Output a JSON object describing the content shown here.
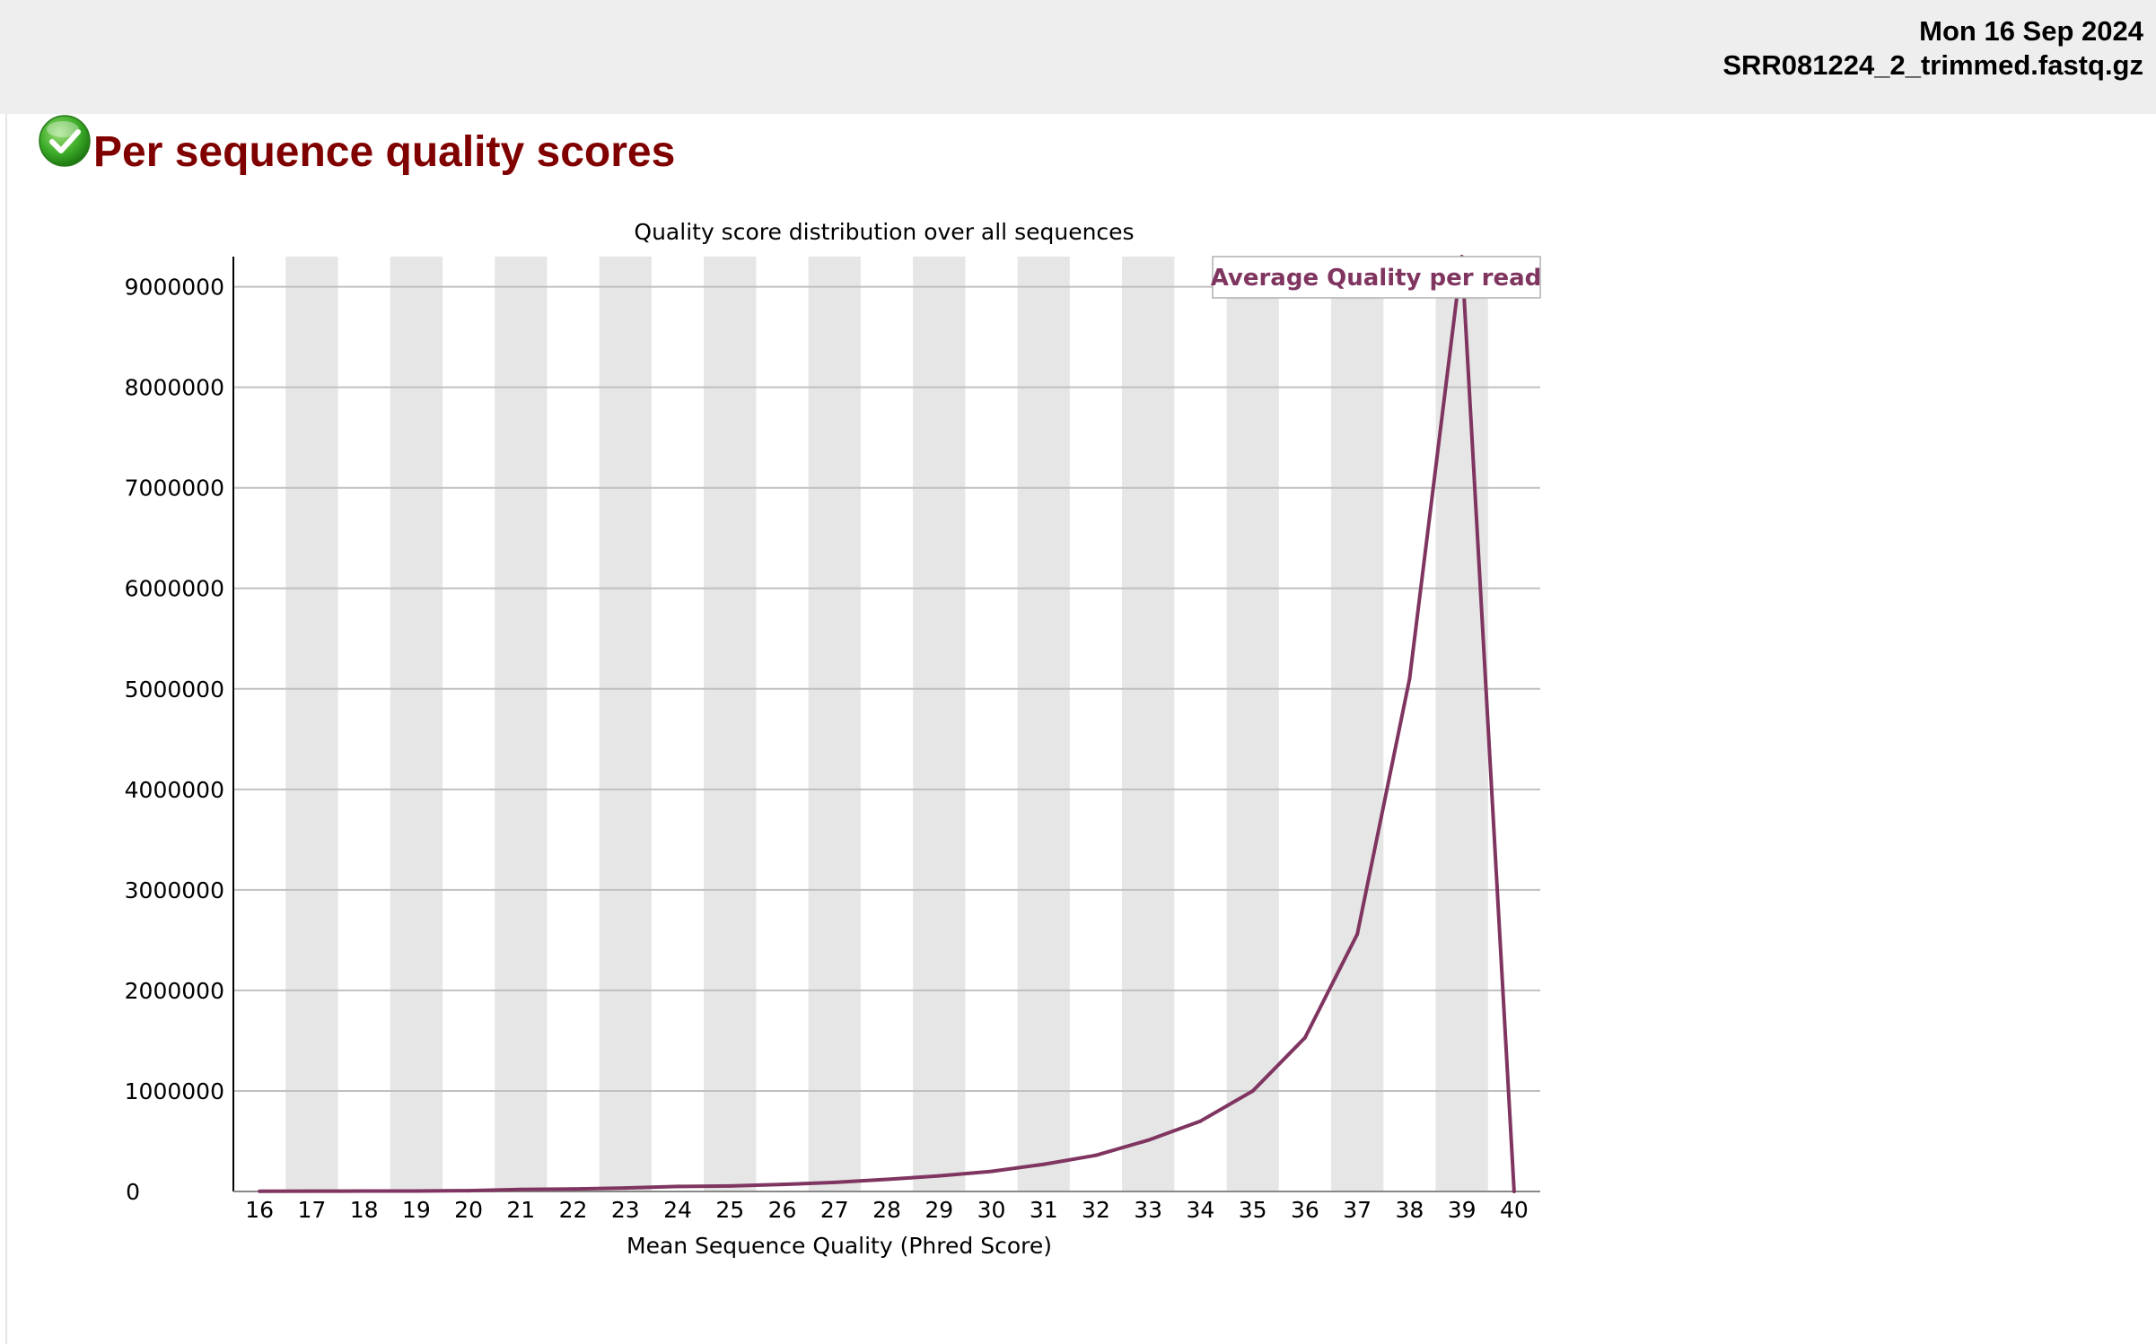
{
  "header": {
    "date": "Mon 16 Sep 2024",
    "filename": "SRR081224_2_trimmed.fastq.gz"
  },
  "module": {
    "title": "Per sequence quality scores",
    "status_icon": "pass-check-icon"
  },
  "colors": {
    "series": "#7f3560",
    "title": "#800000",
    "stripe": "#e6e6e6",
    "grid": "#c0c0c0"
  },
  "chart_data": {
    "type": "line",
    "title": "Quality score distribution over all sequences",
    "xlabel": "Mean Sequence Quality (Phred Score)",
    "ylabel": "",
    "x": [
      16,
      17,
      18,
      19,
      20,
      21,
      22,
      23,
      24,
      25,
      26,
      27,
      28,
      29,
      30,
      31,
      32,
      33,
      34,
      35,
      36,
      37,
      38,
      39,
      40
    ],
    "x_tick_labels": [
      "16",
      "17",
      "18",
      "19",
      "20",
      "21",
      "22",
      "23",
      "24",
      "25",
      "26",
      "27",
      "28",
      "29",
      "30",
      "31",
      "32",
      "33",
      "34",
      "35",
      "36",
      "37",
      "38",
      "39",
      "40"
    ],
    "y_tick_values": [
      0,
      1000000,
      2000000,
      3000000,
      4000000,
      5000000,
      6000000,
      7000000,
      8000000,
      9000000
    ],
    "y_tick_labels": [
      "0",
      "1000000",
      "2000000",
      "3000000",
      "4000000",
      "5000000",
      "6000000",
      "7000000",
      "8000000",
      "9000000"
    ],
    "ylim": [
      0,
      9300000
    ],
    "xlim": [
      16,
      40
    ],
    "grid": true,
    "alternating_column_stripes": true,
    "legend_position": "top-right",
    "series": [
      {
        "name": "Average Quality per read",
        "values": [
          2000,
          3000,
          4000,
          5000,
          8000,
          20000,
          25000,
          35000,
          50000,
          55000,
          70000,
          90000,
          120000,
          155000,
          200000,
          270000,
          360000,
          510000,
          700000,
          1000000,
          1530000,
          2560000,
          5100000,
          9300000,
          0
        ]
      }
    ]
  }
}
